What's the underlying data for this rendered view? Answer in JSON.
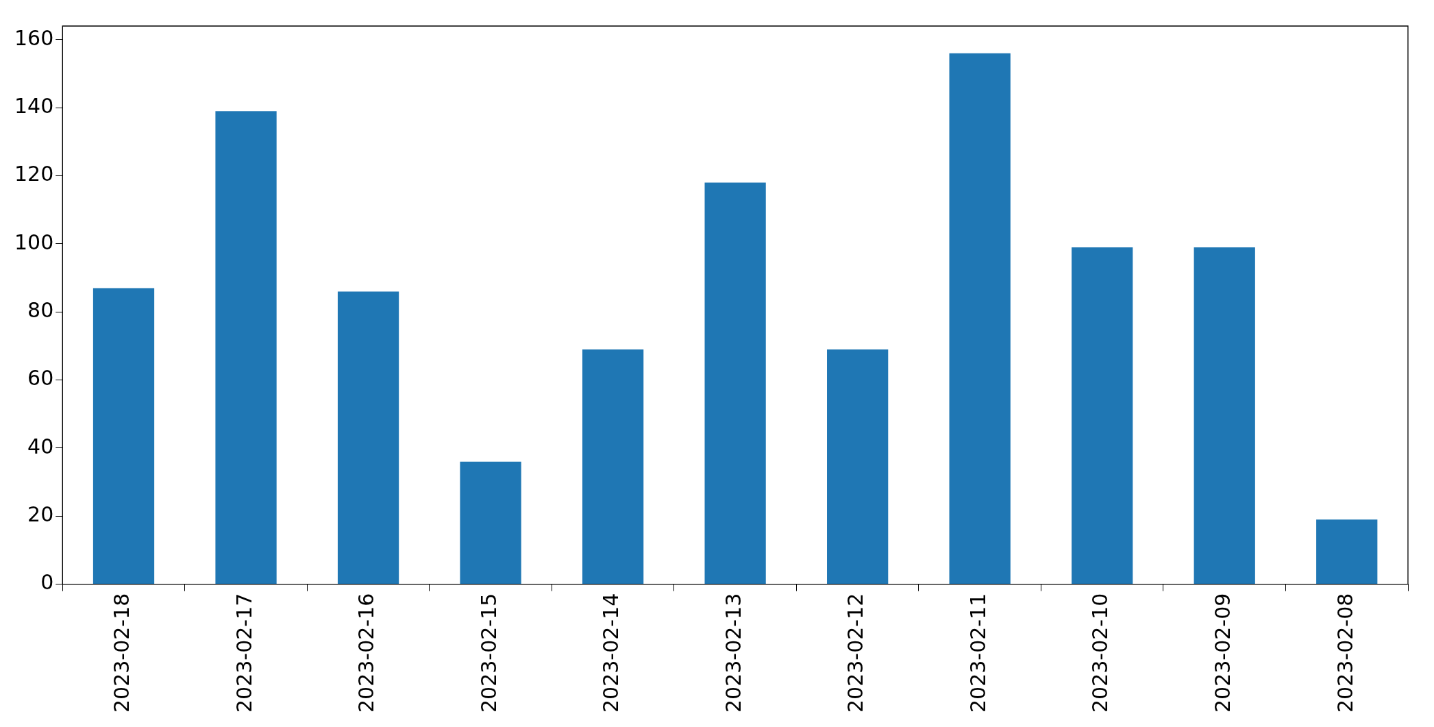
{
  "chart_data": {
    "type": "bar",
    "categories": [
      "2023-02-18",
      "2023-02-17",
      "2023-02-16",
      "2023-02-15",
      "2023-02-14",
      "2023-02-13",
      "2023-02-12",
      "2023-02-11",
      "2023-02-10",
      "2023-02-09",
      "2023-02-08"
    ],
    "values": [
      87,
      139,
      86,
      36,
      69,
      118,
      69,
      156,
      99,
      99,
      19
    ],
    "color": "#1f77b4",
    "ylim": [
      0,
      164
    ],
    "yticks": [
      0,
      20,
      40,
      60,
      80,
      100,
      120,
      140,
      160
    ],
    "grid": false,
    "legend": false
  }
}
